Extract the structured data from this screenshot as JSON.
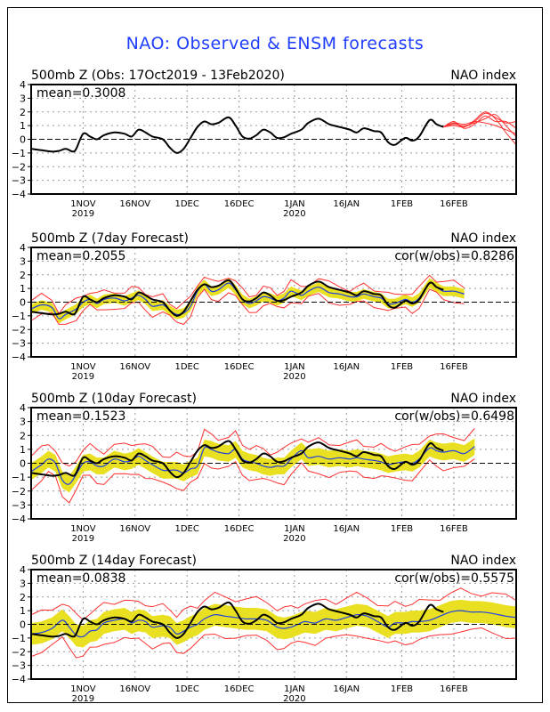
{
  "title": "NAO: Observed & ENSM forecasts",
  "colors": {
    "title": "#1f3fff",
    "observed": "#000000",
    "forecast_members": "#ff3030",
    "spread": "#e8e020",
    "ens_mean": "#2040e0",
    "envelope": "#ff3030"
  },
  "chart_data": [
    {
      "type": "line",
      "title": "500mb Z (Obs: 17Oct2019 - 13Feb2020)",
      "right_label": "NAO index",
      "stat_label": "mean=0.3008",
      "corr_label": "",
      "ylim": [
        -4,
        4
      ],
      "yticks": [
        4,
        3,
        2,
        1,
        0,
        -1,
        -2,
        -3,
        -4
      ],
      "xlim_days": [
        0,
        140
      ],
      "xticks": [
        {
          "day": 15,
          "label": "1NOV",
          "sub": "2019"
        },
        {
          "day": 30,
          "label": "16NOV",
          "sub": ""
        },
        {
          "day": 45,
          "label": "1DEC",
          "sub": ""
        },
        {
          "day": 60,
          "label": "16DEC",
          "sub": ""
        },
        {
          "day": 76,
          "label": "1JAN",
          "sub": "2020"
        },
        {
          "day": 91,
          "label": "16JAN",
          "sub": ""
        },
        {
          "day": 107,
          "label": "1FEB",
          "sub": ""
        },
        {
          "day": 122,
          "label": "16FEB",
          "sub": ""
        }
      ],
      "grid": true,
      "observed": [
        [
          0,
          -0.7
        ],
        [
          3,
          -0.8
        ],
        [
          6,
          -0.9
        ],
        [
          8,
          -0.85
        ],
        [
          10,
          -0.7
        ],
        [
          12,
          -0.9
        ],
        [
          13,
          -0.7
        ],
        [
          15,
          0.4
        ],
        [
          17,
          0.2
        ],
        [
          19,
          0.0
        ],
        [
          21,
          0.3
        ],
        [
          24,
          0.5
        ],
        [
          27,
          0.4
        ],
        [
          29,
          0.2
        ],
        [
          31,
          0.7
        ],
        [
          33,
          0.5
        ],
        [
          35,
          0.2
        ],
        [
          38,
          0.0
        ],
        [
          40,
          -0.6
        ],
        [
          42,
          -1.0
        ],
        [
          44,
          -0.7
        ],
        [
          46,
          0.1
        ],
        [
          48,
          0.9
        ],
        [
          50,
          1.3
        ],
        [
          52,
          1.1
        ],
        [
          54,
          1.2
        ],
        [
          57,
          1.6
        ],
        [
          59,
          1.0
        ],
        [
          61,
          0.2
        ],
        [
          63,
          0.05
        ],
        [
          65,
          0.3
        ],
        [
          67,
          0.7
        ],
        [
          69,
          0.5
        ],
        [
          71,
          0.1
        ],
        [
          73,
          0.15
        ],
        [
          75,
          0.4
        ],
        [
          78,
          0.7
        ],
        [
          80,
          1.2
        ],
        [
          83,
          1.5
        ],
        [
          86,
          1.1
        ],
        [
          89,
          0.9
        ],
        [
          92,
          0.7
        ],
        [
          94,
          0.5
        ],
        [
          96,
          0.8
        ],
        [
          99,
          0.6
        ],
        [
          101,
          0.5
        ],
        [
          103,
          -0.2
        ],
        [
          105,
          -0.4
        ],
        [
          108,
          0.1
        ],
        [
          110,
          -0.1
        ],
        [
          112,
          0.2
        ],
        [
          115,
          1.4
        ],
        [
          117,
          1.1
        ],
        [
          119,
          0.9
        ]
      ],
      "members": [
        [
          [
            119,
            0.9
          ],
          [
            122,
            1.2
          ],
          [
            125,
            0.9
          ],
          [
            128,
            1.4
          ],
          [
            131,
            2.0
          ],
          [
            134,
            1.5
          ],
          [
            137,
            0.5
          ],
          [
            140,
            -0.4
          ]
        ],
        [
          [
            119,
            0.9
          ],
          [
            122,
            1.1
          ],
          [
            125,
            1.0
          ],
          [
            128,
            1.2
          ],
          [
            131,
            1.5
          ],
          [
            134,
            1.8
          ],
          [
            137,
            1.0
          ],
          [
            140,
            0.2
          ]
        ],
        [
          [
            119,
            0.9
          ],
          [
            122,
            1.3
          ],
          [
            125,
            0.8
          ],
          [
            128,
            1.1
          ],
          [
            131,
            1.7
          ],
          [
            134,
            1.3
          ],
          [
            137,
            1.3
          ],
          [
            140,
            0.8
          ]
        ],
        [
          [
            119,
            0.9
          ],
          [
            122,
            1.2
          ],
          [
            125,
            1.1
          ],
          [
            128,
            1.3
          ],
          [
            131,
            1.2
          ],
          [
            134,
            1.0
          ],
          [
            137,
            0.7
          ],
          [
            140,
            0.4
          ]
        ],
        [
          [
            119,
            0.9
          ],
          [
            122,
            1.0
          ],
          [
            125,
            0.9
          ],
          [
            128,
            1.3
          ],
          [
            131,
            1.9
          ],
          [
            134,
            1.6
          ],
          [
            137,
            1.2
          ],
          [
            140,
            1.3
          ]
        ]
      ]
    },
    {
      "type": "line",
      "title": "500mb Z (7day Forecast)",
      "right_label": "NAO index",
      "stat_label": "mean=0.2055",
      "corr_label": "cor(w/obs)=0.8286",
      "ylim": [
        -4,
        4
      ],
      "series_offset": 1,
      "spread": 0.35,
      "envelope": 0.6,
      "ens_mean": [
        [
          0,
          -0.5
        ],
        [
          3,
          -0.2
        ],
        [
          6,
          -0.4
        ],
        [
          8,
          -1.2
        ],
        [
          10,
          -0.9
        ],
        [
          13,
          -0.5
        ],
        [
          15,
          0.0
        ],
        [
          17,
          0.2
        ],
        [
          19,
          -0.1
        ],
        [
          21,
          0.2
        ],
        [
          24,
          0.3
        ],
        [
          27,
          0.1
        ],
        [
          29,
          0.3
        ],
        [
          31,
          0.5
        ],
        [
          33,
          0.2
        ],
        [
          35,
          -0.3
        ],
        [
          38,
          -0.2
        ],
        [
          40,
          -0.6
        ],
        [
          42,
          -0.9
        ],
        [
          44,
          -0.8
        ],
        [
          46,
          -0.3
        ],
        [
          48,
          0.8
        ],
        [
          50,
          1.3
        ],
        [
          52,
          0.8
        ],
        [
          54,
          0.9
        ],
        [
          57,
          1.4
        ],
        [
          59,
          0.9
        ],
        [
          61,
          0.2
        ],
        [
          63,
          -0.1
        ],
        [
          65,
          0.1
        ],
        [
          67,
          0.4
        ],
        [
          69,
          0.3
        ],
        [
          71,
          0.1
        ],
        [
          73,
          0.3
        ],
        [
          75,
          0.8
        ],
        [
          78,
          0.5
        ],
        [
          80,
          0.8
        ],
        [
          83,
          1.1
        ],
        [
          86,
          0.7
        ],
        [
          89,
          0.6
        ],
        [
          92,
          0.4
        ],
        [
          94,
          0.4
        ],
        [
          96,
          0.6
        ],
        [
          99,
          0.4
        ],
        [
          101,
          0.3
        ],
        [
          103,
          -0.1
        ],
        [
          105,
          -0.1
        ],
        [
          108,
          0.2
        ],
        [
          110,
          0.0
        ],
        [
          112,
          0.3
        ],
        [
          115,
          1.4
        ],
        [
          117,
          1.1
        ],
        [
          119,
          0.8
        ],
        [
          122,
          0.8
        ],
        [
          125,
          0.6
        ]
      ]
    },
    {
      "type": "line",
      "title": "500mb Z (10day Forecast)",
      "right_label": "NAO index",
      "stat_label": "mean=0.1523",
      "corr_label": "cor(w/obs)=0.6498",
      "ylim": [
        -4,
        4
      ],
      "spread": 0.6,
      "envelope": 1.1,
      "ens_mean": [
        [
          0,
          -0.6
        ],
        [
          3,
          -0.1
        ],
        [
          5,
          0.3
        ],
        [
          7,
          0.0
        ],
        [
          9,
          -1.2
        ],
        [
          11,
          -1.5
        ],
        [
          13,
          -0.8
        ],
        [
          15,
          0.0
        ],
        [
          17,
          0.1
        ],
        [
          19,
          -0.2
        ],
        [
          21,
          -0.2
        ],
        [
          24,
          0.3
        ],
        [
          27,
          0.1
        ],
        [
          29,
          0.2
        ],
        [
          31,
          0.5
        ],
        [
          33,
          0.2
        ],
        [
          35,
          -0.1
        ],
        [
          38,
          -0.5
        ],
        [
          40,
          -0.5
        ],
        [
          42,
          -0.5
        ],
        [
          44,
          -0.7
        ],
        [
          46,
          -0.4
        ],
        [
          48,
          -0.2
        ],
        [
          50,
          1.1
        ],
        [
          52,
          1.0
        ],
        [
          54,
          0.8
        ],
        [
          57,
          0.7
        ],
        [
          59,
          1.0
        ],
        [
          61,
          0.3
        ],
        [
          63,
          0.1
        ],
        [
          65,
          0.0
        ],
        [
          67,
          -0.2
        ],
        [
          69,
          -0.3
        ],
        [
          71,
          -0.2
        ],
        [
          73,
          -0.2
        ],
        [
          75,
          0.3
        ],
        [
          78,
          0.9
        ],
        [
          80,
          0.4
        ],
        [
          83,
          0.5
        ],
        [
          86,
          0.3
        ],
        [
          89,
          0.4
        ],
        [
          92,
          0.3
        ],
        [
          94,
          0.4
        ],
        [
          96,
          0.3
        ],
        [
          99,
          0.2
        ],
        [
          101,
          0.1
        ],
        [
          103,
          -0.1
        ],
        [
          105,
          0.0
        ],
        [
          108,
          0.1
        ],
        [
          110,
          0.0
        ],
        [
          112,
          0.3
        ],
        [
          115,
          1.1
        ],
        [
          117,
          0.9
        ],
        [
          119,
          0.8
        ],
        [
          122,
          0.9
        ],
        [
          125,
          0.7
        ],
        [
          128,
          1.2
        ]
      ]
    },
    {
      "type": "line",
      "title": "500mb Z (14day Forecast)",
      "right_label": "NAO index",
      "stat_label": "mean=0.0838",
      "corr_label": "cor(w/obs)=0.5575",
      "ylim": [
        -4,
        4
      ],
      "spread": 0.8,
      "envelope": 1.4,
      "ens_mean": [
        [
          0,
          -0.7
        ],
        [
          3,
          -0.6
        ],
        [
          6,
          -0.3
        ],
        [
          9,
          0.3
        ],
        [
          11,
          -0.2
        ],
        [
          13,
          -0.8
        ],
        [
          15,
          -0.9
        ],
        [
          17,
          -0.5
        ],
        [
          19,
          -0.4
        ],
        [
          21,
          0.1
        ],
        [
          24,
          0.3
        ],
        [
          27,
          0.4
        ],
        [
          29,
          0.1
        ],
        [
          31,
          0.3
        ],
        [
          33,
          0.2
        ],
        [
          35,
          -0.2
        ],
        [
          38,
          -0.1
        ],
        [
          40,
          -0.2
        ],
        [
          42,
          -0.7
        ],
        [
          44,
          -0.5
        ],
        [
          46,
          -0.2
        ],
        [
          48,
          0.0
        ],
        [
          50,
          0.4
        ],
        [
          53,
          0.7
        ],
        [
          56,
          0.6
        ],
        [
          59,
          0.5
        ],
        [
          62,
          0.4
        ],
        [
          65,
          0.4
        ],
        [
          68,
          0.3
        ],
        [
          71,
          -0.2
        ],
        [
          73,
          -0.3
        ],
        [
          75,
          -0.2
        ],
        [
          77,
          0.0
        ],
        [
          79,
          0.2
        ],
        [
          82,
          0.1
        ],
        [
          85,
          0.4
        ],
        [
          88,
          0.3
        ],
        [
          91,
          0.5
        ],
        [
          94,
          0.7
        ],
        [
          97,
          0.6
        ],
        [
          100,
          0.2
        ],
        [
          103,
          -0.2
        ],
        [
          105,
          0.1
        ],
        [
          108,
          0.1
        ],
        [
          110,
          0.2
        ],
        [
          112,
          0.2
        ],
        [
          115,
          0.3
        ],
        [
          118,
          0.6
        ],
        [
          121,
          0.9
        ],
        [
          124,
          1.0
        ],
        [
          127,
          0.9
        ],
        [
          130,
          0.9
        ],
        [
          133,
          0.8
        ],
        [
          137,
          0.6
        ],
        [
          140,
          0.5
        ]
      ]
    }
  ]
}
